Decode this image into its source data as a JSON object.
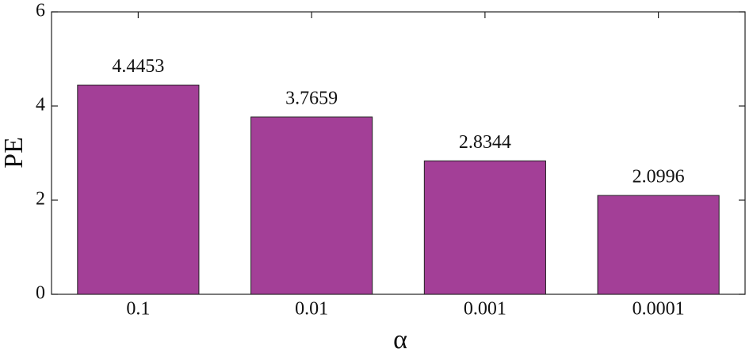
{
  "chart_data": {
    "type": "bar",
    "x_label": "α",
    "y_label": "PE",
    "categories": [
      "0.1",
      "0.01",
      "0.001",
      "0.0001"
    ],
    "values": [
      4.4453,
      3.7659,
      2.8344,
      2.0996
    ],
    "color": "#a33f97",
    "ylim": [
      0,
      6
    ],
    "yticks": [
      0,
      2,
      4,
      6
    ],
    "grid": false
  }
}
